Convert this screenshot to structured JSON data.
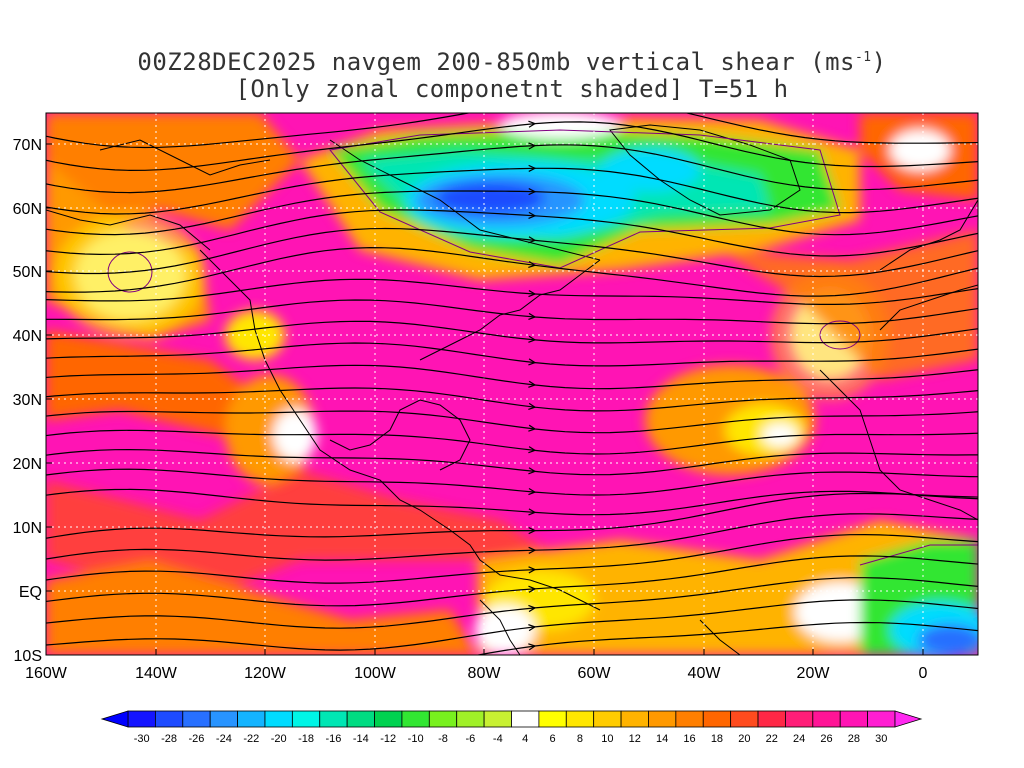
{
  "title": {
    "line1_prefix": "00Z28DEC2025 navgem 200-850mb vertical shear (ms",
    "line1_sup": "-1",
    "line1_suffix": ")",
    "line2": "[Only zonal componetnt shaded] T=51 h"
  },
  "map": {
    "lon_range": [
      -160,
      10
    ],
    "lat_range": [
      -10,
      75
    ],
    "lat_ticks": [
      "70N",
      "60N",
      "50N",
      "40N",
      "30N",
      "20N",
      "10N",
      "EQ",
      "10S"
    ],
    "lon_ticks": [
      "160W",
      "140W",
      "120W",
      "100W",
      "80W",
      "60W",
      "40W",
      "20W",
      "0"
    ]
  },
  "colorbar": {
    "labels": [
      "-30",
      "-28",
      "-26",
      "-24",
      "-22",
      "-20",
      "-18",
      "-16",
      "-14",
      "-12",
      "-10",
      "-8",
      "-6",
      "-4",
      "4",
      "6",
      "8",
      "10",
      "12",
      "14",
      "16",
      "18",
      "20",
      "22",
      "24",
      "26",
      "28",
      "30"
    ],
    "colors": [
      "#1414ff",
      "#1e4bff",
      "#2870ff",
      "#2894ff",
      "#14b4ff",
      "#00dcff",
      "#00f5e6",
      "#00e6b4",
      "#00dc82",
      "#00d250",
      "#32e632",
      "#78f01e",
      "#a0f028",
      "#c8f032",
      "#ffffff",
      "#ffff00",
      "#ffe600",
      "#ffcc00",
      "#ffb300",
      "#ff9900",
      "#ff7f00",
      "#ff6600",
      "#ff4b1e",
      "#ff2846",
      "#ff1e78",
      "#ff1496",
      "#ff14b4",
      "#ff1ed2"
    ]
  }
}
